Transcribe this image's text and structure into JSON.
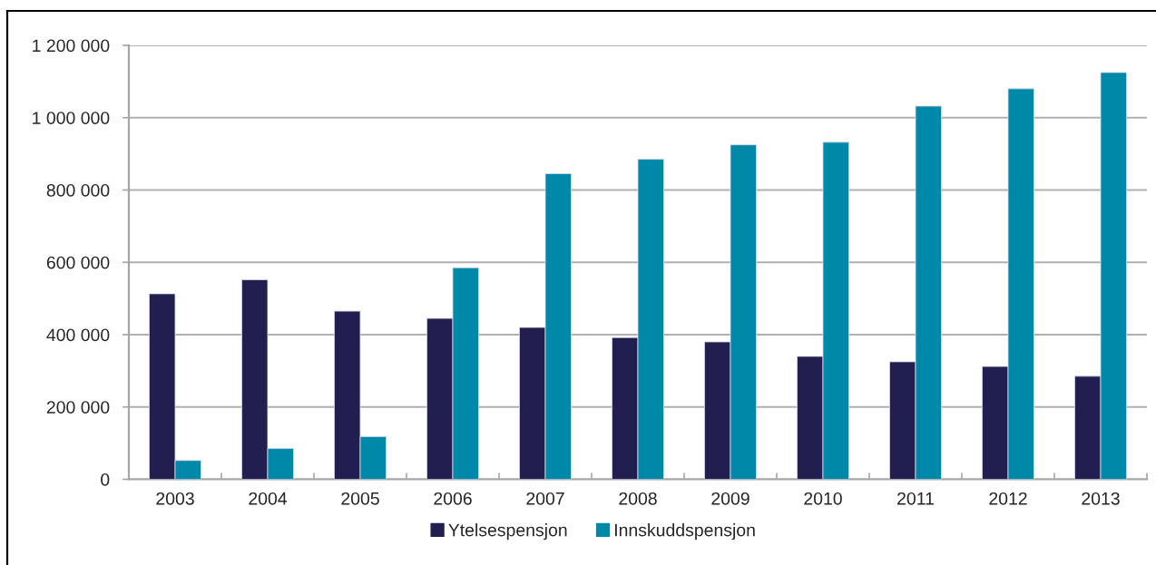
{
  "chart_data": {
    "type": "bar",
    "categories": [
      "2003",
      "2004",
      "2005",
      "2006",
      "2007",
      "2008",
      "2009",
      "2010",
      "2011",
      "2012",
      "2013"
    ],
    "series": [
      {
        "name": "Ytelsespensjon",
        "color": "#221f50",
        "values": [
          513000,
          552000,
          465000,
          445000,
          420000,
          392000,
          380000,
          340000,
          325000,
          312000,
          285000
        ]
      },
      {
        "name": "Innskuddspensjon",
        "color": "#0088a8",
        "values": [
          52000,
          85000,
          118000,
          585000,
          845000,
          885000,
          925000,
          932000,
          1032000,
          1080000,
          1125000
        ]
      }
    ],
    "ylim": [
      0,
      1200000
    ],
    "yticks": [
      0,
      {
        "value": 200000,
        "label": "200 000"
      },
      {
        "value": 400000,
        "label": "400 000"
      },
      {
        "value": 600000,
        "label": "600 000"
      },
      {
        "value": 800000,
        "label": "800 000"
      },
      {
        "value": 1000000,
        "label": "1 000 000"
      },
      {
        "value": 1200000,
        "label": "1 200 000"
      }
    ],
    "grid": "y",
    "legend": "bottom"
  }
}
